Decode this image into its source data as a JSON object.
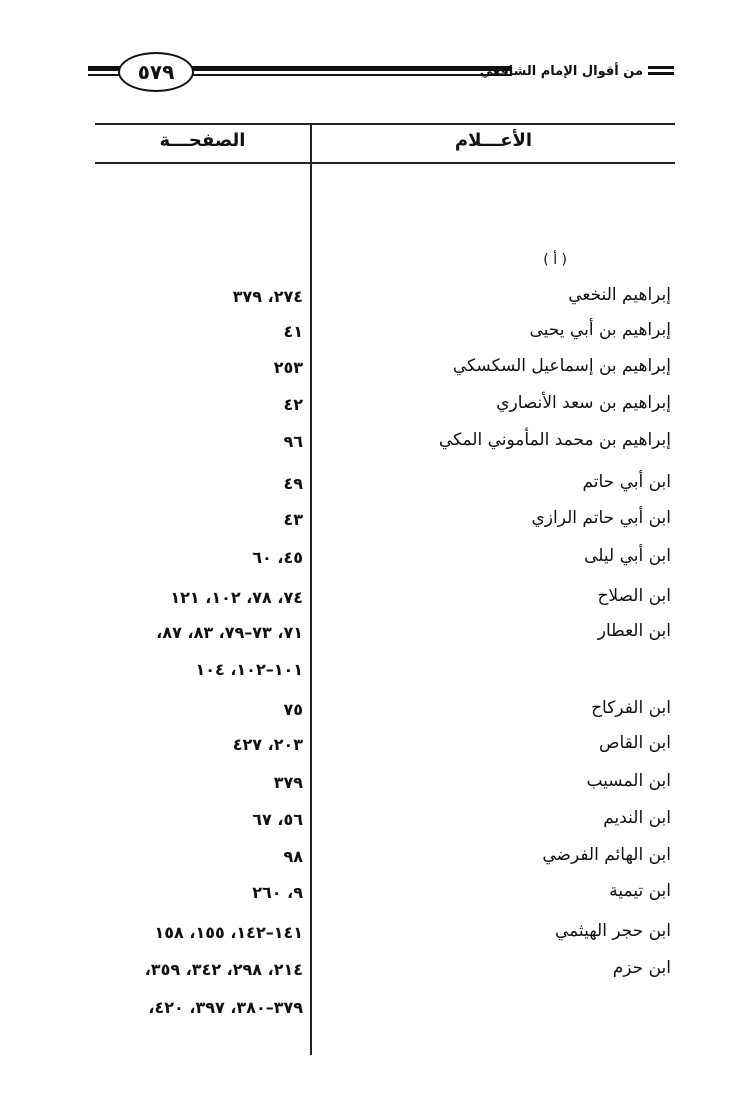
{
  "header": {
    "page_number": "٥٧٩",
    "book_title": "من أقوال الإمام الشافعي"
  },
  "table": {
    "col_names": "الأعـــلام",
    "col_pages": "الصفحـــة",
    "section_letter": "( أ )",
    "rows": [
      {
        "name": "إبراهيم النخعي",
        "pages": "٢٧٤، ٣٧٩"
      },
      {
        "name": "إبراهيم بن أبي يحيى",
        "pages": "٤١"
      },
      {
        "name": "إبراهيم بن إسماعيل السكسكي",
        "pages": "٢٥٣"
      },
      {
        "name": "إبراهيم بن سعد الأنصاري",
        "pages": "٤٢"
      },
      {
        "name": "إبراهيم بن محمد المأموني المكي",
        "pages": "٩٦"
      },
      {
        "name": "ابن أبي حاتم",
        "pages": "٤٩"
      },
      {
        "name": "ابن أبي حاتم الرازي",
        "pages": "٤٣"
      },
      {
        "name": "ابن أبي ليلى",
        "pages": "٤٥، ٦٠"
      },
      {
        "name": "ابن الصلاح",
        "pages": "٧٤، ٧٨، ١٠٢، ١٢١"
      },
      {
        "name": "ابن العطار",
        "pages": "٧١، ٧٣–٧٩، ٨٣، ٨٧،"
      },
      {
        "name": "",
        "pages": "١٠١–١٠٢، ١٠٤"
      },
      {
        "name": "ابن الفركاح",
        "pages": "٧٥"
      },
      {
        "name": "ابن القاص",
        "pages": "٢٠٣، ٤٢٧"
      },
      {
        "name": "ابن المسيب",
        "pages": "٣٧٩"
      },
      {
        "name": "ابن النديم",
        "pages": "٥٦، ٦٧"
      },
      {
        "name": "ابن الهائم الفرضي",
        "pages": "٩٨"
      },
      {
        "name": "ابن تيمية",
        "pages": "٩، ٢٦٠"
      },
      {
        "name": "ابن حجر الهيثمي",
        "pages": "١٤١–١٤٢، ١٥٥، ١٥٨"
      },
      {
        "name": "ابن حزم",
        "pages": "٢١٤، ٢٩٨، ٣٤٢، ٣٥٩،"
      },
      {
        "name": "",
        "pages": "٣٧٩–٣٨٠، ٣٩٧، ٤٢٠،"
      }
    ]
  }
}
